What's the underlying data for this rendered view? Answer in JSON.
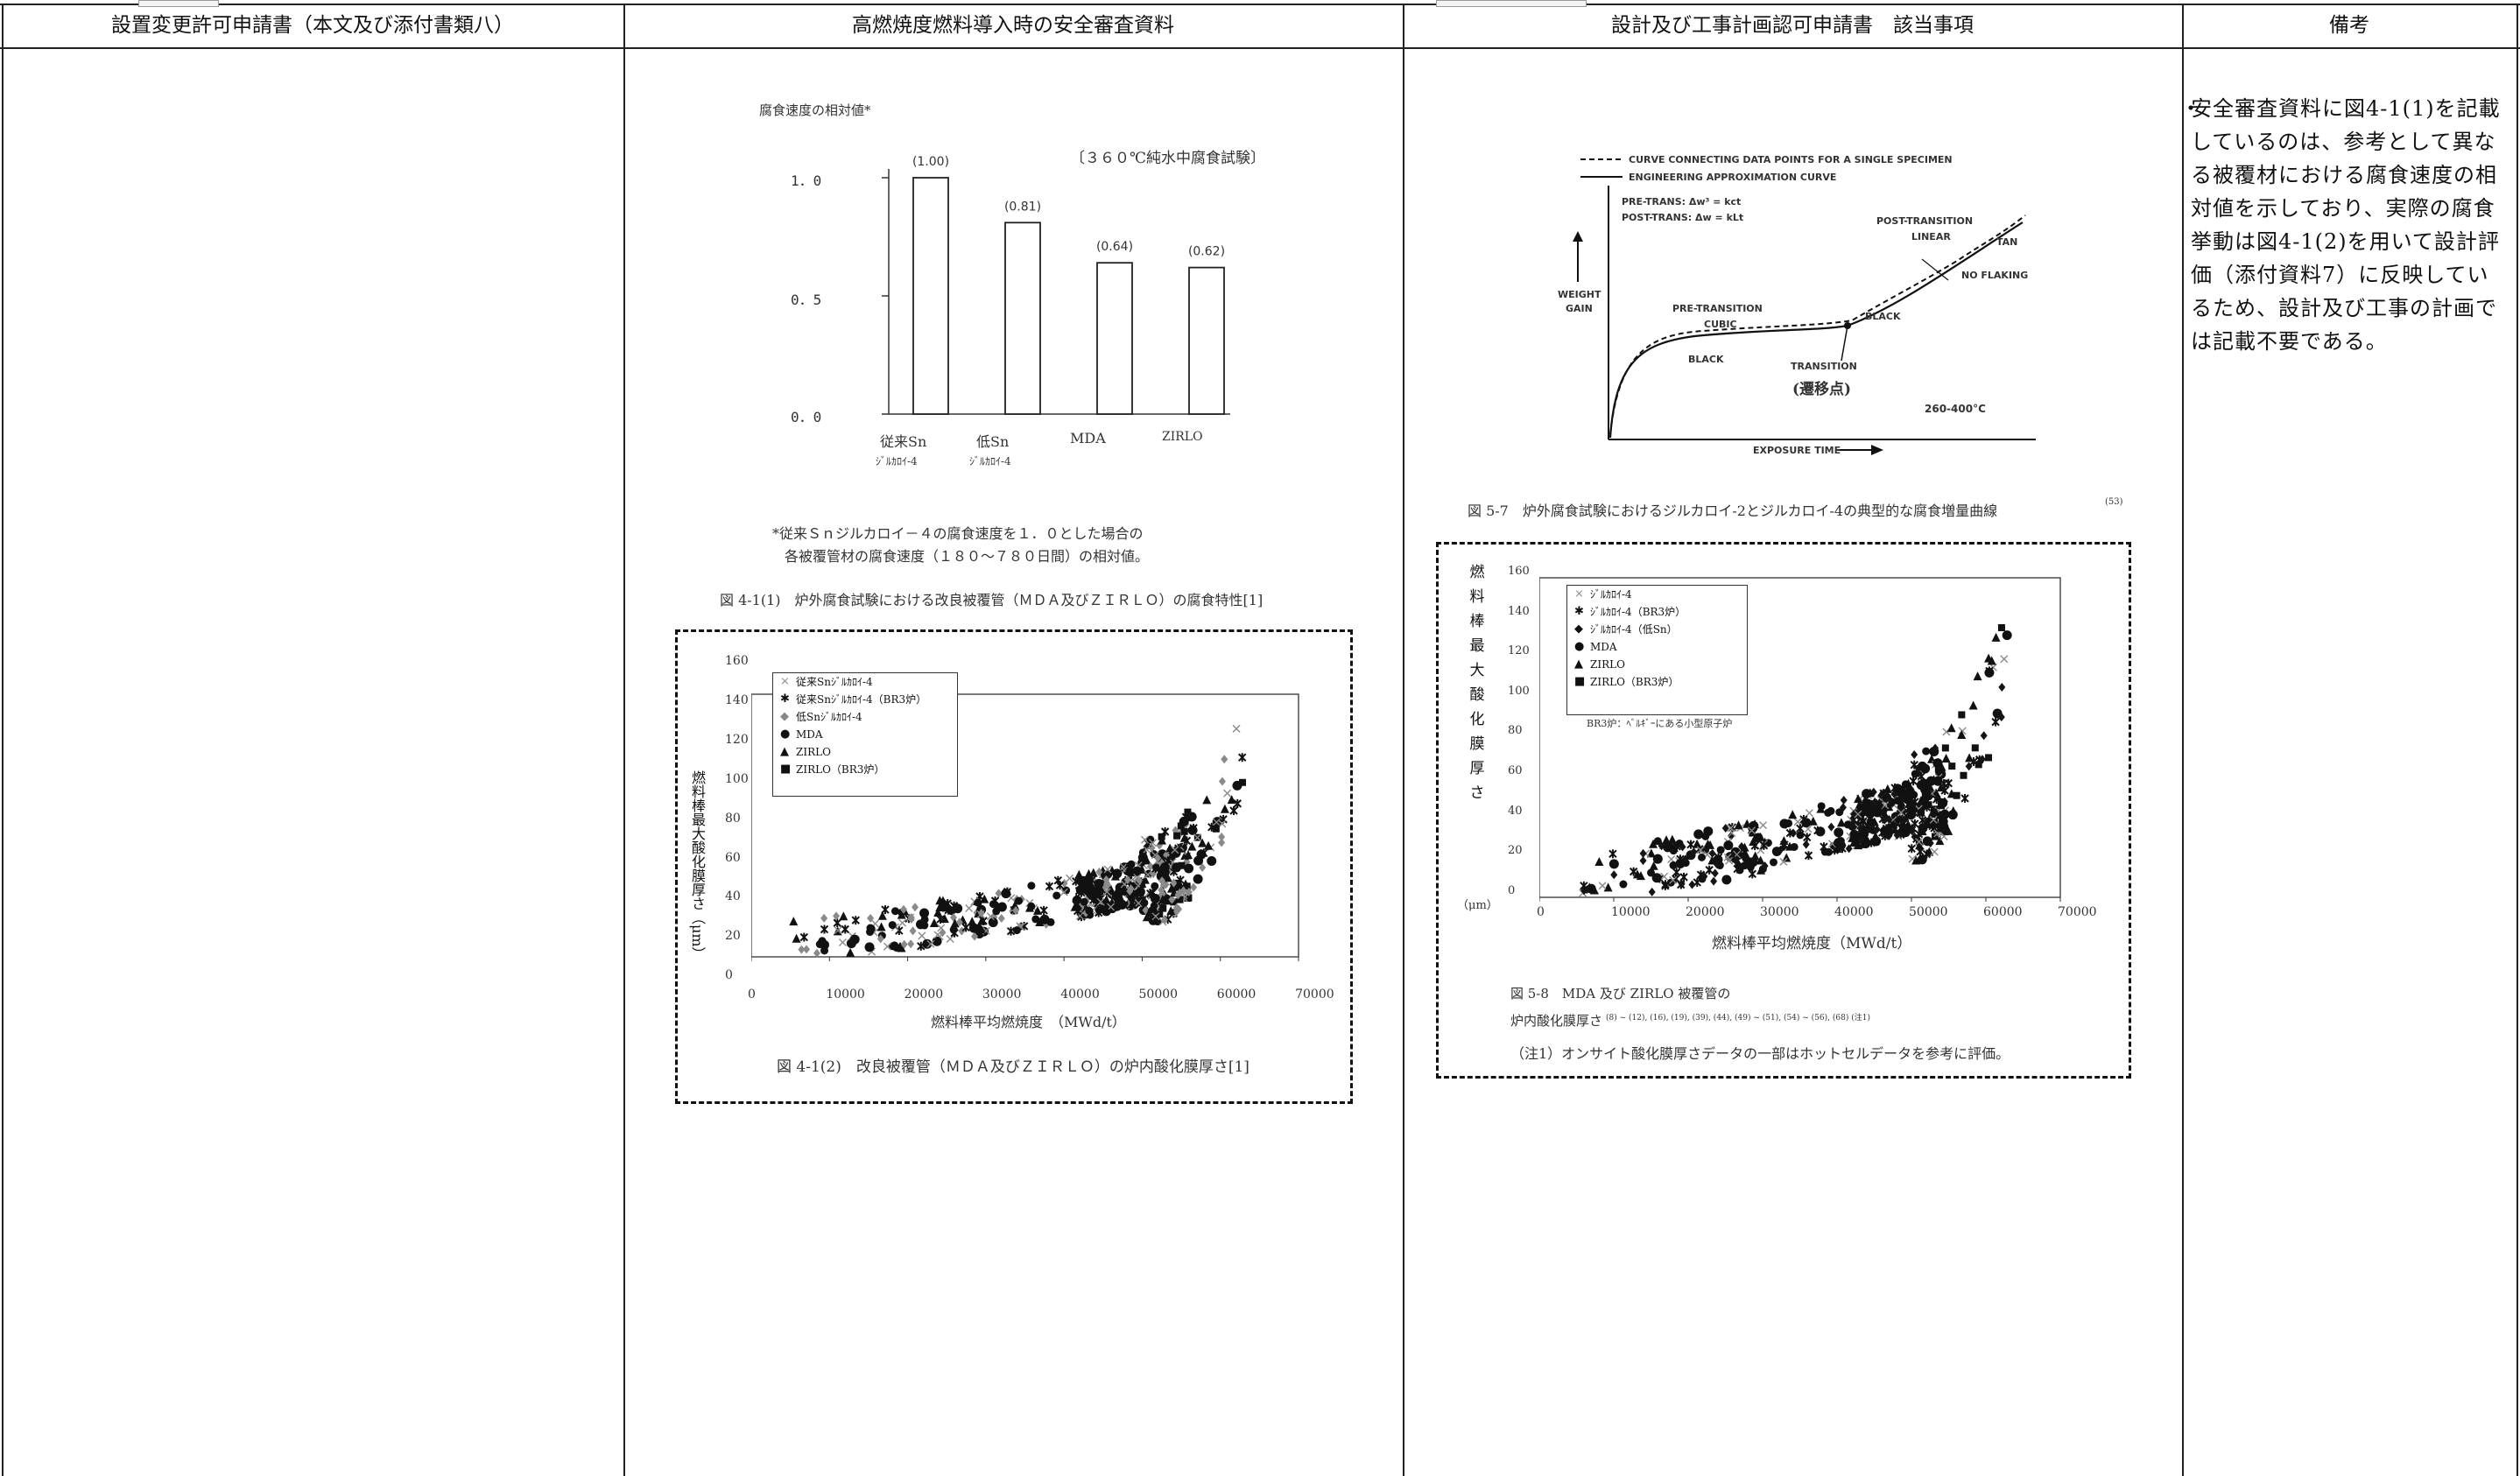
{
  "headers": {
    "col1": "設置変更許可申請書（本文及び添付書類八）",
    "col2": "高燃焼度燃料導入時の安全審査資料",
    "col3": "設計及び工事計画認可申請書　該当事項",
    "col4": "備考"
  },
  "remark": "安全審査資料に図4-1(1)を記載しているのは、参考として異なる被覆材における腐食速度の相対値を示しており、実際の腐食挙動は図4-1(2)を用いて設計評価（添付資料7）に反映しているため、設計及び工事の計画では記載不要である。",
  "fig41_1": {
    "ylabel": "腐食速度の相対値*",
    "test_note": "〔３６０℃純水中腐食試験〕",
    "footnote_line1": "*従来Ｓｎジルカロイ－４の腐食速度を１．０とした場合の",
    "footnote_line2": "各被覆管材の腐食速度（１８０～７８０日間）の相対値。",
    "caption": "図 4-1(1)　炉外腐食試験における改良被覆管（ＭＤＡ及びＺＩＲＬＯ）の腐食特性[1]",
    "bar_labels": [
      "(1.00)",
      "(0.81)",
      "(0.64)",
      "(0.62)"
    ],
    "cat_line1": [
      "従来Sn",
      "低Sn",
      "MDA",
      "ZIRLO"
    ],
    "cat_line2": [
      "ｼﾞﾙｶﾛｲ-4",
      "ｼﾞﾙｶﾛｲ-4",
      "",
      ""
    ],
    "yticks": [
      "1．0",
      "0．5",
      "0．0"
    ]
  },
  "chart_data": [
    {
      "type": "bar",
      "categories": [
        "従来Sn ｼﾞﾙｶﾛｲ-4",
        "低Sn ｼﾞﾙｶﾛｲ-4",
        "MDA",
        "ZIRLO"
      ],
      "values": [
        1.0,
        0.81,
        0.64,
        0.62
      ],
      "ylabel": "腐食速度の相対値*",
      "ylim": [
        0,
        1.0
      ]
    },
    {
      "type": "scatter",
      "xlabel": "燃料棒平均燃焼度　（MWd/t）",
      "ylabel": "燃料棒最大酸化膜厚さ　（μm）",
      "xlim": [
        0,
        70000
      ],
      "ylim": [
        0,
        160
      ],
      "xticks": [
        "0",
        "10000",
        "20000",
        "30000",
        "40000",
        "50000",
        "60000",
        "70000"
      ],
      "yticks": [
        "0",
        "20",
        "40",
        "60",
        "80",
        "100",
        "120",
        "140",
        "160"
      ],
      "legend": [
        "従来Snｼﾞﾙｶﾛｲ-4",
        "従来Snｼﾞﾙｶﾛｲ-4（BR3炉）",
        "低Snｼﾞﾙｶﾛｲ-4",
        "MDA",
        "ZIRLO",
        "ZIRLO（BR3炉）"
      ]
    },
    {
      "type": "line",
      "title": "図 5-7 炉外腐食試験におけるジルカロイ-2とジルカロイ-4の典型的な腐食増量曲線",
      "xlabel": "EXPOSURE TIME",
      "ylabel": "WEIGHT GAIN"
    },
    {
      "type": "scatter",
      "xlabel": "燃料棒平均燃焼度（MWd/t）",
      "ylabel": "燃料棒最大酸化膜厚さ（μm）",
      "xlim": [
        0,
        70000
      ],
      "ylim": [
        0,
        160
      ],
      "xticks": [
        "0",
        "10000",
        "20000",
        "30000",
        "40000",
        "50000",
        "60000",
        "70000"
      ],
      "yticks": [
        "0",
        "20",
        "40",
        "60",
        "80",
        "100",
        "120",
        "140",
        "160"
      ],
      "legend": [
        "ｼﾞﾙｶﾛｲ-4",
        "ｼﾞﾙｶﾛｲ-4（BR3炉）",
        "ｼﾞﾙｶﾛｲ-4（低Sn）",
        "MDA",
        "ZIRLO",
        "ZIRLO（BR3炉）"
      ]
    }
  ],
  "fig41_2": {
    "caption": "図 4-1(2)　改良被覆管（ＭＤＡ及びＺＩＲＬＯ）の炉内酸化膜厚さ[1]",
    "xlabel": "燃料棒平均燃焼度　（MWd/t）",
    "ylabel": "燃料棒最大酸化膜厚さ（μm）",
    "legend": [
      "従来Snｼﾞﾙｶﾛｲ-4",
      "従来Snｼﾞﾙｶﾛｲ-4（BR3炉）",
      "低Snｼﾞﾙｶﾛｲ-4",
      "MDA",
      "ZIRLO",
      "ZIRLO（BR3炉）"
    ],
    "xticks": [
      "0",
      "10000",
      "20000",
      "30000",
      "40000",
      "50000",
      "60000",
      "70000"
    ],
    "yticks": [
      "160",
      "140",
      "120",
      "100",
      "80",
      "60",
      "40",
      "20",
      "0"
    ]
  },
  "fig57": {
    "caption": "図 5-7　炉外腐食試験におけるジルカロイ-2とジルカロイ-4の典型的な腐食増量曲線",
    "caption_ref": "(53)",
    "legend1": "CURVE CONNECTING DATA POINTS FOR A SINGLE SPECIMEN",
    "legend2": "ENGINEERING APPROXIMATION CURVE",
    "eq1": "PRE-TRANS: Δw³ = kct",
    "eq2": "POST-TRANS: Δw = kLt",
    "post_trans": "POST-TRANSITION",
    "linear": "LINEAR",
    "tan": "TAN",
    "no_flaking": "NO FLAKING",
    "weight_gain_1": "WEIGHT",
    "weight_gain_2": "GAIN",
    "pre_transition": "PRE-TRANSITION",
    "cubic": "CUBIC",
    "black1": "BLACK",
    "black2": "BLACK",
    "transition": "TRANSITION",
    "transition_jp": "(遷移点)",
    "temp": "260-400°C",
    "exposure": "EXPOSURE TIME"
  },
  "fig58": {
    "ylabel_chars": [
      "燃",
      "料",
      "棒",
      "最",
      "大",
      "酸",
      "化",
      "膜",
      "厚",
      "さ"
    ],
    "yunit": "（μm）",
    "xlabel": "燃料棒平均燃焼度（MWd/t）",
    "legend": [
      "ｼﾞﾙｶﾛｲ-4",
      "ｼﾞﾙｶﾛｲ-4（BR3炉）",
      "ｼﾞﾙｶﾛｲ-4（低Sn）",
      "MDA",
      "ZIRLO",
      "ZIRLO（BR3炉）"
    ],
    "legend_note": "BR3炉：ﾍﾞﾙｷﾞｰにある小型原子炉",
    "caption1": "図 5-8　MDA 及び ZIRLO 被覆管の",
    "caption2": "炉内酸化膜厚さ",
    "caption2_refs": "(8) ~ (12), (16), (19), (39), (44), (49) ~ (51), (54) ~ (56), (68) (注1)",
    "caption3": "（注1）オンサイト酸化膜厚さデータの一部はホットセルデータを参考に評価。",
    "xticks": [
      "0",
      "10000",
      "20000",
      "30000",
      "40000",
      "50000",
      "60000",
      "70000"
    ],
    "yticks": [
      "160",
      "140",
      "120",
      "100",
      "80",
      "60",
      "40",
      "20",
      "0"
    ]
  },
  "colors": {
    "ink": "#111111",
    "grey_marker": "#888888",
    "rule": "#222222"
  }
}
